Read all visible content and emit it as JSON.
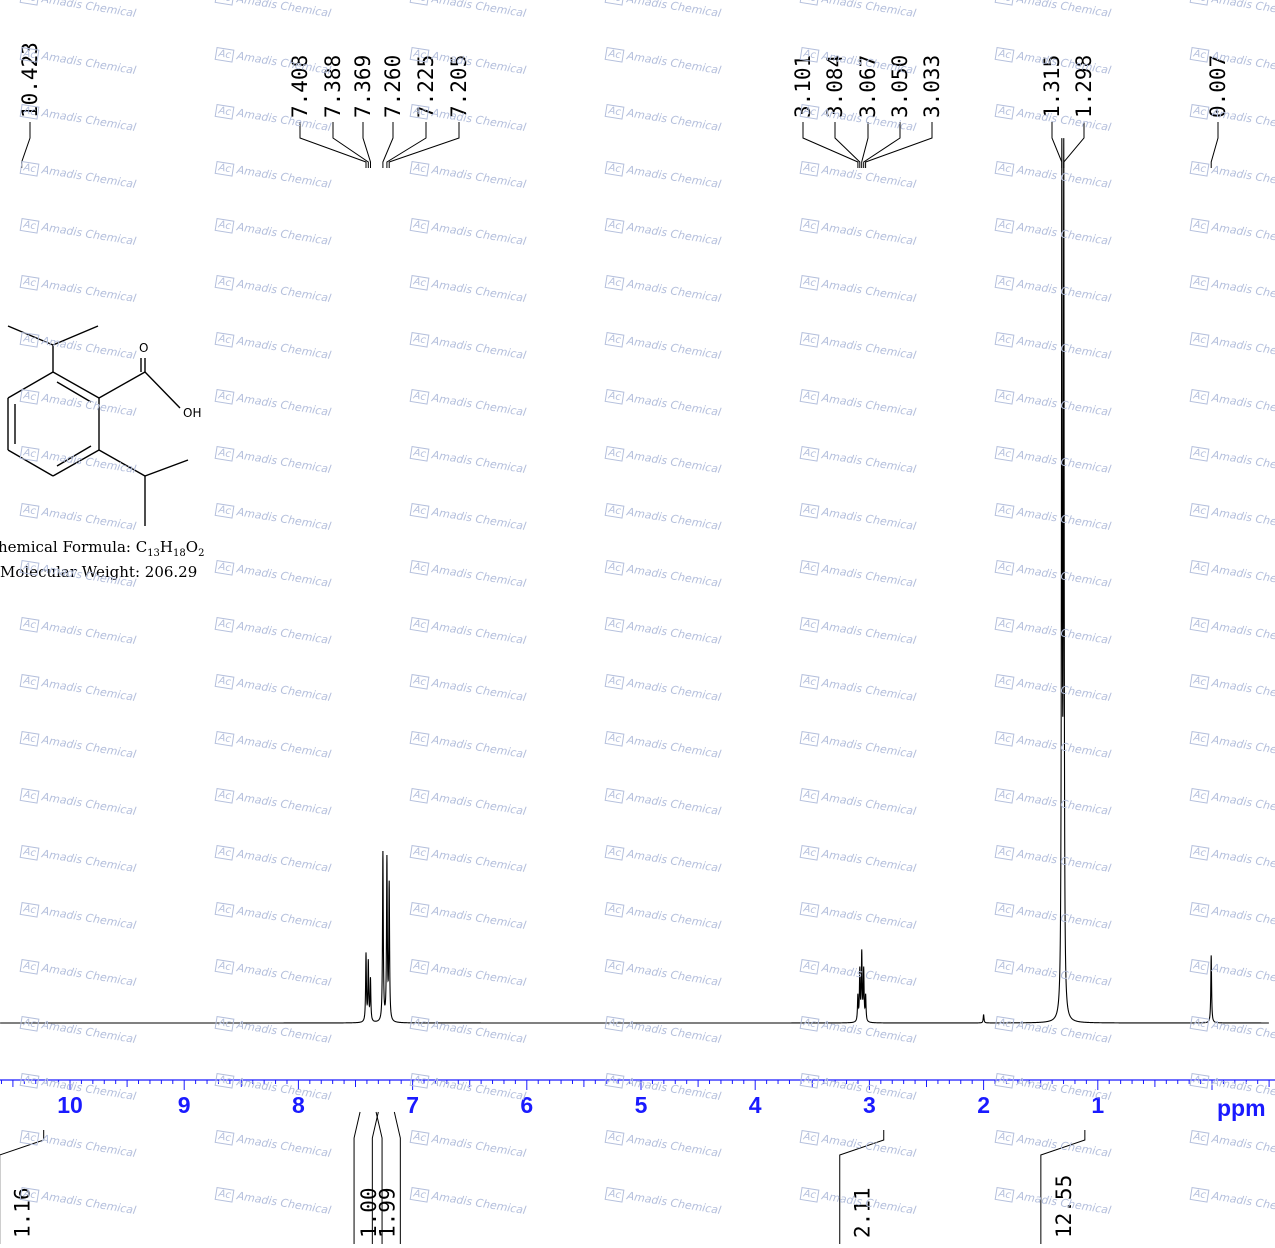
{
  "watermark": {
    "logo": "Ac",
    "text": "Amadis Chemical"
  },
  "compound": {
    "formula_prefix": "hemical Formula: ",
    "formula_parts": [
      {
        "t": "C",
        "sub": false
      },
      {
        "t": "13",
        "sub": true
      },
      {
        "t": "H",
        "sub": false
      },
      {
        "t": "18",
        "sub": true
      },
      {
        "t": "O",
        "sub": false
      },
      {
        "t": "2",
        "sub": true
      }
    ],
    "weight_text": "Molecular Weight: 206.29",
    "atom_labels": {
      "carbonyl_o": "O",
      "hydroxyl": "OH"
    }
  },
  "chart_data": {
    "type": "line",
    "title": "",
    "xlabel": "ppm",
    "ylabel": "",
    "xlim": [
      11.0,
      -0.5
    ],
    "x_reversed": true,
    "ticks_major": [
      10,
      9,
      8,
      7,
      6,
      5,
      4,
      3,
      2,
      1
    ],
    "tick_labels": [
      "10",
      "9",
      "8",
      "7",
      "6",
      "5",
      "4",
      "3",
      "2",
      "1"
    ],
    "peak_labels": [
      {
        "group": "singlet-acid",
        "values": [
          "10.423"
        ]
      },
      {
        "group": "aromatic",
        "values": [
          "7.408",
          "7.388",
          "7.369",
          "7.260",
          "7.225",
          "7.205"
        ]
      },
      {
        "group": "methine",
        "values": [
          "3.101",
          "3.084",
          "3.067",
          "3.050",
          "3.033"
        ]
      },
      {
        "group": "methyl",
        "values": [
          "1.315",
          "1.298"
        ]
      },
      {
        "group": "tms",
        "values": [
          "0.007"
        ]
      }
    ],
    "peaks": [
      {
        "ppm": 10.423,
        "height": 0.0
      },
      {
        "ppm": 7.408,
        "height": 0.08
      },
      {
        "ppm": 7.388,
        "height": 0.07
      },
      {
        "ppm": 7.369,
        "height": 0.05
      },
      {
        "ppm": 7.26,
        "height": 0.2
      },
      {
        "ppm": 7.225,
        "height": 0.19
      },
      {
        "ppm": 7.205,
        "height": 0.16
      },
      {
        "ppm": 3.101,
        "height": 0.03
      },
      {
        "ppm": 3.084,
        "height": 0.06
      },
      {
        "ppm": 3.067,
        "height": 0.08
      },
      {
        "ppm": 3.05,
        "height": 0.06
      },
      {
        "ppm": 3.033,
        "height": 0.03
      },
      {
        "ppm": 1.315,
        "height": 0.995
      },
      {
        "ppm": 1.298,
        "height": 0.995
      },
      {
        "ppm": 0.007,
        "height": 0.08
      },
      {
        "ppm": 2.0,
        "height": 0.01
      }
    ],
    "integrals": [
      {
        "ppm": 10.423,
        "value": "1.16"
      },
      {
        "ppm": 7.39,
        "value": "1.00"
      },
      {
        "ppm": 7.23,
        "value": "1.99"
      },
      {
        "ppm": 3.067,
        "value": "2.11"
      },
      {
        "ppm": 1.306,
        "value": "12.55"
      }
    ],
    "colors": {
      "spectrum": "#000000",
      "axis": "#1a1aff",
      "labels": "#000000"
    }
  }
}
